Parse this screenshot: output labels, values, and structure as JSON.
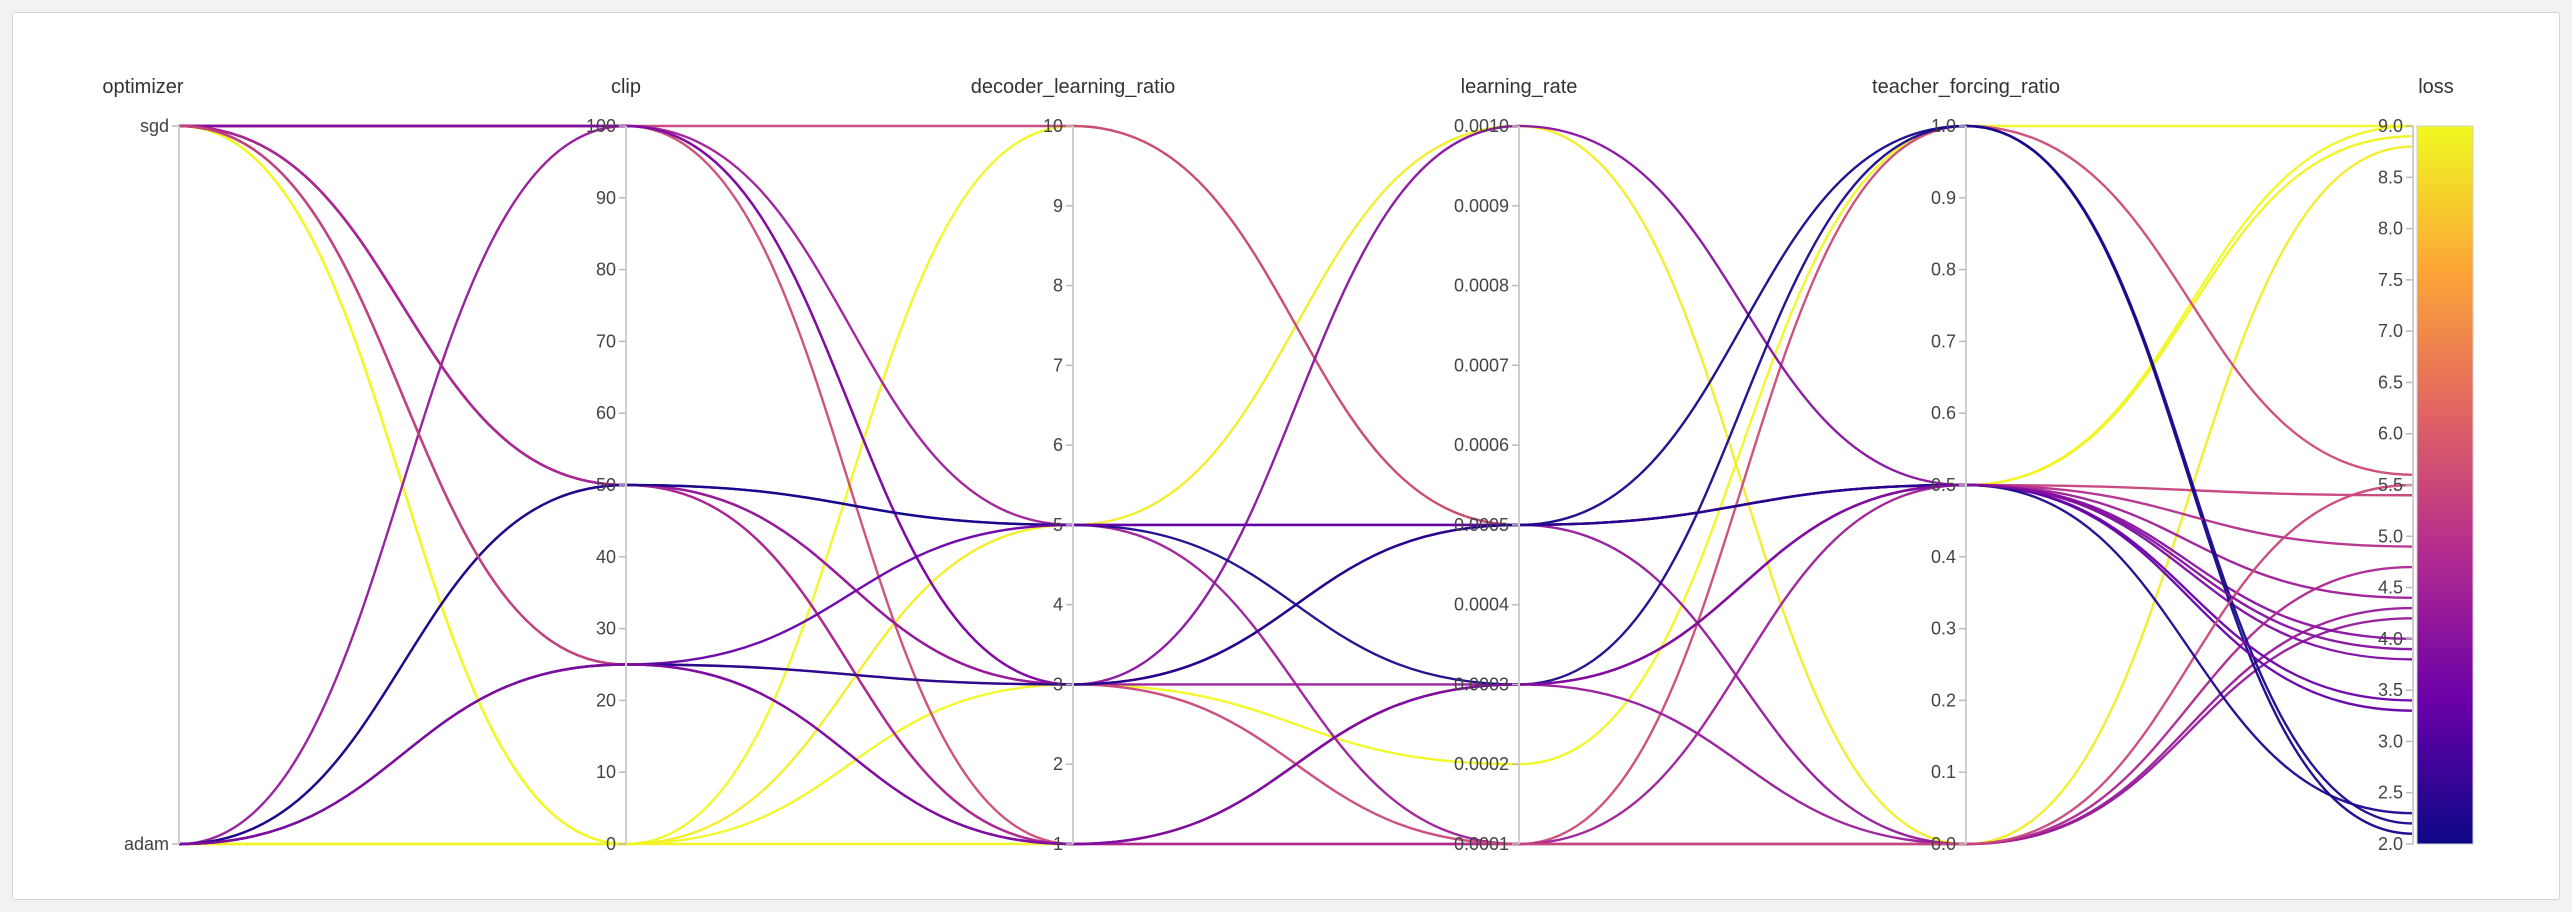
{
  "chart_data": {
    "type": "parallel_coordinates",
    "axes": [
      {
        "key": "optimizer",
        "label": "optimizer",
        "kind": "categorical",
        "categories": [
          "adam",
          "sgd"
        ]
      },
      {
        "key": "clip",
        "label": "clip",
        "kind": "linear",
        "range": [
          0,
          100
        ],
        "ticks": [
          "0",
          "10",
          "20",
          "30",
          "40",
          "50",
          "60",
          "70",
          "80",
          "90",
          "100"
        ]
      },
      {
        "key": "decoder_learning_ratio",
        "label": "decoder_learning_ratio",
        "kind": "linear",
        "range": [
          1,
          10
        ],
        "ticks": [
          "1",
          "2",
          "3",
          "4",
          "5",
          "6",
          "7",
          "8",
          "9",
          "10"
        ]
      },
      {
        "key": "learning_rate",
        "label": "learning_rate",
        "kind": "linear",
        "range": [
          0.0001,
          0.001
        ],
        "ticks": [
          "0.0001",
          "0.0002",
          "0.0003",
          "0.0004",
          "0.0005",
          "0.0006",
          "0.0007",
          "0.0008",
          "0.0009",
          "0.0010"
        ]
      },
      {
        "key": "teacher_forcing_ratio",
        "label": "teacher_forcing_ratio",
        "kind": "linear",
        "range": [
          0,
          1
        ],
        "ticks": [
          "0.0",
          "0.1",
          "0.2",
          "0.3",
          "0.4",
          "0.5",
          "0.6",
          "0.7",
          "0.8",
          "0.9",
          "1.0"
        ]
      },
      {
        "key": "loss",
        "label": "loss",
        "kind": "linear",
        "range": [
          2,
          9
        ],
        "ticks": [
          "2.0",
          "2.5",
          "3.0",
          "3.5",
          "4.0",
          "4.5",
          "5.0",
          "5.5",
          "6.0",
          "6.5",
          "7.0",
          "7.5",
          "8.0",
          "8.5",
          "9.0"
        ]
      }
    ],
    "colorscale": {
      "name": "plasma",
      "metric": "loss",
      "range": [
        2,
        9
      ],
      "stops": [
        "#0d0887",
        "#6a00a8",
        "#b12a90",
        "#e16462",
        "#fca636",
        "#f0f921"
      ]
    },
    "runs": [
      {
        "optimizer": "sgd",
        "clip": 0,
        "decoder_learning_ratio": 10,
        "learning_rate": 0.0005,
        "teacher_forcing_ratio": 0.5,
        "loss": 9.0
      },
      {
        "optimizer": "sgd",
        "clip": 0,
        "decoder_learning_ratio": 3,
        "learning_rate": 0.0002,
        "teacher_forcing_ratio": 1.0,
        "loss": 9.0
      },
      {
        "optimizer": "adam",
        "clip": 0,
        "decoder_learning_ratio": 5,
        "learning_rate": 0.001,
        "teacher_forcing_ratio": 0.0,
        "loss": 8.8
      },
      {
        "optimizer": "adam",
        "clip": 0,
        "decoder_learning_ratio": 1,
        "learning_rate": 0.0003,
        "teacher_forcing_ratio": 0.5,
        "loss": 8.9
      },
      {
        "optimizer": "sgd",
        "clip": 100,
        "decoder_learning_ratio": 10,
        "learning_rate": 0.0005,
        "teacher_forcing_ratio": 0.5,
        "loss": 5.4
      },
      {
        "optimizer": "sgd",
        "clip": 100,
        "decoder_learning_ratio": 1,
        "learning_rate": 0.0001,
        "teacher_forcing_ratio": 1.0,
        "loss": 5.6
      },
      {
        "optimizer": "adam",
        "clip": 100,
        "decoder_learning_ratio": 3,
        "learning_rate": 0.0005,
        "teacher_forcing_ratio": 0.0,
        "loss": 4.2
      },
      {
        "optimizer": "sgd",
        "clip": 100,
        "decoder_learning_ratio": 5,
        "learning_rate": 0.0001,
        "teacher_forcing_ratio": 0.5,
        "loss": 4.4
      },
      {
        "optimizer": "sgd",
        "clip": 100,
        "decoder_learning_ratio": 3,
        "learning_rate": 0.0005,
        "teacher_forcing_ratio": 0.5,
        "loss": 3.8
      },
      {
        "optimizer": "sgd",
        "clip": 50,
        "decoder_learning_ratio": 3,
        "learning_rate": 0.001,
        "teacher_forcing_ratio": 0.5,
        "loss": 4.0
      },
      {
        "optimizer": "adam",
        "clip": 50,
        "decoder_learning_ratio": 3,
        "learning_rate": 0.0003,
        "teacher_forcing_ratio": 0.0,
        "loss": 4.3
      },
      {
        "optimizer": "sgd",
        "clip": 50,
        "decoder_learning_ratio": 5,
        "learning_rate": 0.0005,
        "teacher_forcing_ratio": 1.0,
        "loss": 2.1
      },
      {
        "optimizer": "sgd",
        "clip": 50,
        "decoder_learning_ratio": 1,
        "learning_rate": 0.0003,
        "teacher_forcing_ratio": 0.5,
        "loss": 4.9
      },
      {
        "optimizer": "sgd",
        "clip": 50,
        "decoder_learning_ratio": 1,
        "learning_rate": 0.0001,
        "teacher_forcing_ratio": 0.0,
        "loss": 4.7
      },
      {
        "optimizer": "adam",
        "clip": 50,
        "decoder_learning_ratio": 5,
        "learning_rate": 0.0003,
        "teacher_forcing_ratio": 1.0,
        "loss": 2.2
      },
      {
        "optimizer": "adam",
        "clip": 25,
        "decoder_learning_ratio": 5,
        "learning_rate": 0.0005,
        "teacher_forcing_ratio": 0.5,
        "loss": 3.4
      },
      {
        "optimizer": "sgd",
        "clip": 25,
        "decoder_learning_ratio": 1,
        "learning_rate": 0.0003,
        "teacher_forcing_ratio": 0.5,
        "loss": 3.3
      },
      {
        "optimizer": "sgd",
        "clip": 25,
        "decoder_learning_ratio": 3,
        "learning_rate": 0.0001,
        "teacher_forcing_ratio": 0.0,
        "loss": 5.5
      },
      {
        "optimizer": "adam",
        "clip": 25,
        "decoder_learning_ratio": 3,
        "learning_rate": 0.0005,
        "teacher_forcing_ratio": 0.5,
        "loss": 2.3
      },
      {
        "optimizer": "adam",
        "clip": 25,
        "decoder_learning_ratio": 1,
        "learning_rate": 0.0003,
        "teacher_forcing_ratio": 0.5,
        "loss": 3.9
      }
    ]
  }
}
